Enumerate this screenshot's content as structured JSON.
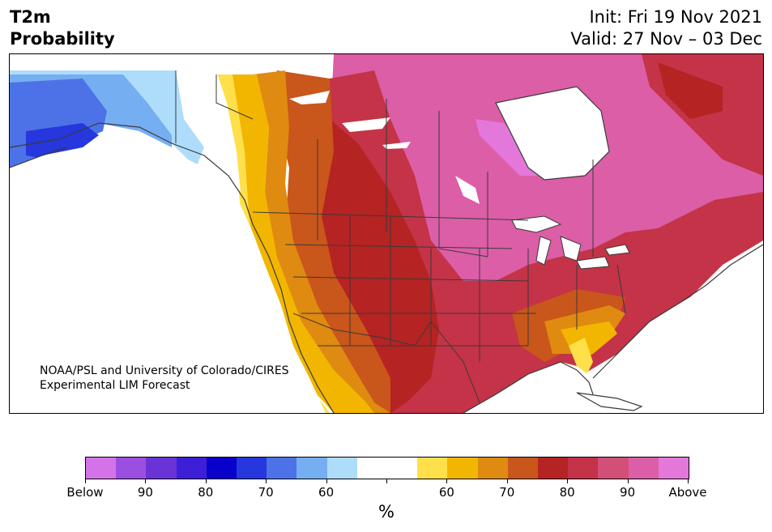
{
  "header": {
    "title_line1": "T2m",
    "title_line2": "Probability",
    "init": "Init: Fri 19 Nov 2021",
    "valid": "Valid: 27 Nov – 03 Dec"
  },
  "credit": {
    "line1": "NOAA/PSL and University of Colorado/CIRES",
    "line2": "Experimental LIM Forecast"
  },
  "colorbar": {
    "colors": [
      "#d473e8",
      "#9b4fe0",
      "#6a33d6",
      "#3c1fd6",
      "#0a00cc",
      "#2537dd",
      "#4d72e8",
      "#76aef2",
      "#aedcfb",
      "#ffffff",
      "#ffffff",
      "#ffe04a",
      "#f2b600",
      "#df8a10",
      "#c9561a",
      "#b52323",
      "#c43347",
      "#d24f78",
      "#db5ea6",
      "#e478da"
    ],
    "tick_labels": [
      "Below",
      "90",
      "80",
      "70",
      "60",
      "",
      "60",
      "70",
      "80",
      "90",
      "Above"
    ],
    "unit": "%"
  },
  "legend_colors": {
    "above_high": "#db5ea6",
    "above_mid": "#c43347",
    "above_70": "#b52323",
    "above_60": "#c9561a",
    "above_55": "#df8a10",
    "above_50": "#f2b600",
    "above_40": "#ffe04a",
    "below_40": "#aedcfb",
    "below_50": "#76aef2",
    "below_60": "#4d72e8",
    "below_70": "#2537dd"
  }
}
